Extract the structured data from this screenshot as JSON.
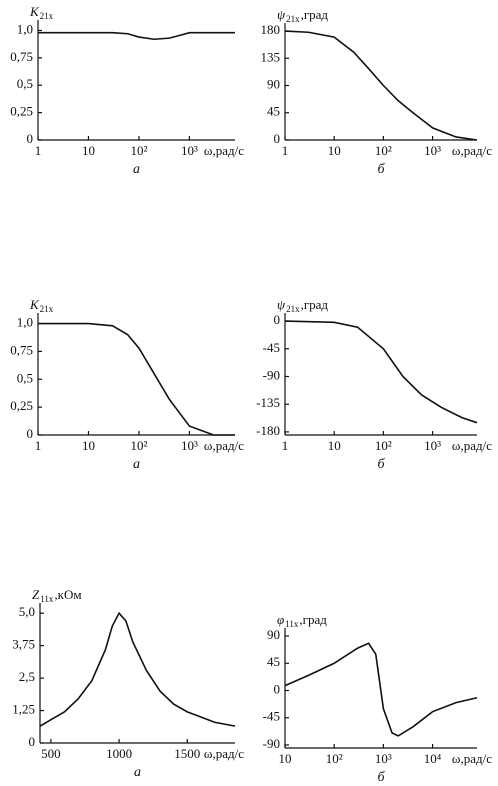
{
  "chart_data": [
    {
      "type": "line",
      "xscale": "log",
      "xlim": [
        1,
        8000
      ],
      "ylim": [
        0,
        1.05
      ],
      "ylabel": "K",
      "ylabel_subscript": "21x",
      "xlabel": "ω,рад/с",
      "caption": "а",
      "xticks": [
        1,
        10,
        {
          "value": 100,
          "label": "10²"
        },
        {
          "value": 1000,
          "label": "10³"
        }
      ],
      "yticks": [
        0,
        {
          "value": 0.25,
          "label": "0,25"
        },
        {
          "value": 0.5,
          "label": "0,5"
        },
        {
          "value": 0.75,
          "label": "0,75"
        },
        {
          "value": 1.0,
          "label": "1,0"
        }
      ],
      "x": [
        1,
        10,
        30,
        60,
        100,
        200,
        400,
        700,
        1000,
        3000,
        8000
      ],
      "values": [
        0.98,
        0.98,
        0.98,
        0.97,
        0.94,
        0.92,
        0.93,
        0.96,
        0.98,
        0.98,
        0.98
      ],
      "color": "#111"
    },
    {
      "type": "line",
      "xscale": "log",
      "xlim": [
        1,
        8000
      ],
      "ylim": [
        0,
        185
      ],
      "ylabel": "ψ",
      "ylabel_subscript": "21x",
      "ylabel_suffix": ",град",
      "xlabel": "ω,рад/с",
      "caption": "б",
      "xticks": [
        1,
        10,
        {
          "value": 100,
          "label": "10²"
        },
        {
          "value": 1000,
          "label": "10³"
        }
      ],
      "yticks": [
        0,
        45,
        90,
        135,
        180
      ],
      "x": [
        1,
        3,
        10,
        25,
        50,
        100,
        200,
        400,
        1000,
        3000,
        8000
      ],
      "values": [
        180,
        178,
        170,
        145,
        118,
        90,
        65,
        45,
        20,
        5,
        0
      ],
      "color": "#111"
    },
    {
      "type": "line",
      "xscale": "log",
      "xlim": [
        1,
        8000
      ],
      "ylim": [
        0,
        1.05
      ],
      "ylabel": "K",
      "ylabel_subscript": "21x",
      "xlabel": "ω,рад/с",
      "caption": "а",
      "xticks": [
        1,
        10,
        {
          "value": 100,
          "label": "10²"
        },
        {
          "value": 1000,
          "label": "10³"
        }
      ],
      "yticks": [
        0,
        {
          "value": 0.25,
          "label": "0,25"
        },
        {
          "value": 0.5,
          "label": "0,5"
        },
        {
          "value": 0.75,
          "label": "0,75"
        },
        {
          "value": 1.0,
          "label": "1,0"
        }
      ],
      "x": [
        1,
        10,
        30,
        60,
        100,
        200,
        400,
        1000,
        3000,
        8000
      ],
      "values": [
        1,
        1,
        0.98,
        0.9,
        0.78,
        0.55,
        0.32,
        0.08,
        0,
        0
      ],
      "color": "#111"
    },
    {
      "type": "line",
      "xscale": "log",
      "xlim": [
        1,
        8000
      ],
      "ylim": [
        -185,
        5
      ],
      "ylabel": "ψ",
      "ylabel_subscript": "21x",
      "ylabel_suffix": ",град",
      "xlabel": "ω,рад/с",
      "caption": "б",
      "xticks": [
        1,
        10,
        {
          "value": 100,
          "label": "10²"
        },
        {
          "value": 1000,
          "label": "10³"
        }
      ],
      "yticks": [
        0,
        -45,
        -90,
        -135,
        -180
      ],
      "x": [
        1,
        10,
        30,
        100,
        250,
        600,
        1500,
        4000,
        8000
      ],
      "values": [
        0,
        -2,
        -10,
        -45,
        -90,
        -120,
        -140,
        -157,
        -165
      ],
      "color": "#111"
    },
    {
      "type": "line",
      "xscale": "linear",
      "xlim": [
        420,
        1850
      ],
      "ylim": [
        0,
        5.2
      ],
      "ylabel": "Z",
      "ylabel_subscript": "11x",
      "ylabel_suffix": ",кОм",
      "xlabel": "ω,рад/с",
      "caption": "а",
      "xticks": [
        500,
        1000,
        1500
      ],
      "yticks": [
        0,
        {
          "value": 1.25,
          "label": "1,25"
        },
        {
          "value": 2.5,
          "label": "2,5"
        },
        {
          "value": 3.75,
          "label": "3,75"
        },
        {
          "value": 5.0,
          "label": "5,0"
        }
      ],
      "x": [
        420,
        500,
        600,
        700,
        800,
        900,
        950,
        1000,
        1050,
        1100,
        1200,
        1300,
        1400,
        1500,
        1600,
        1700,
        1850
      ],
      "values": [
        0.65,
        0.9,
        1.2,
        1.7,
        2.4,
        3.6,
        4.5,
        5.0,
        4.7,
        3.9,
        2.8,
        2.0,
        1.5,
        1.2,
        1.0,
        0.8,
        0.65
      ],
      "color": "#111"
    },
    {
      "type": "line",
      "xscale": "log",
      "xlim": [
        10,
        80000
      ],
      "ylim": [
        -95,
        95
      ],
      "ylabel": "φ",
      "ylabel_subscript": "11x",
      "ylabel_suffix": ",град",
      "xlabel": "ω,рад/с",
      "caption": "б",
      "xticks": [
        10,
        {
          "value": 100,
          "label": "10²"
        },
        {
          "value": 1000,
          "label": "10³"
        },
        {
          "value": 10000,
          "label": "10⁴"
        }
      ],
      "yticks": [
        90,
        45,
        0,
        -45,
        -90
      ],
      "x": [
        10,
        30,
        100,
        300,
        500,
        700,
        1000,
        1500,
        2000,
        4000,
        10000,
        30000,
        80000
      ],
      "values": [
        8,
        25,
        45,
        70,
        78,
        60,
        -30,
        -70,
        -75,
        -60,
        -35,
        -20,
        -12
      ],
      "color": "#111"
    }
  ]
}
